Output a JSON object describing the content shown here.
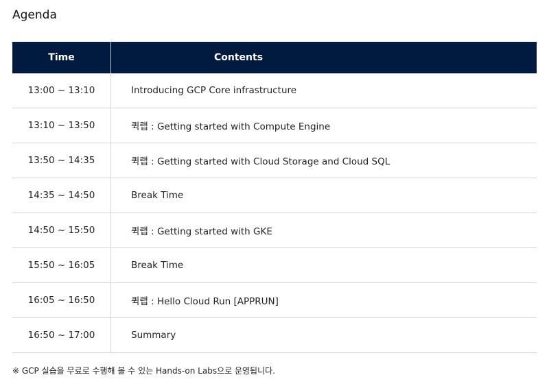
{
  "title": "Agenda",
  "table": {
    "headers": {
      "time": "Time",
      "contents": "Contents"
    },
    "header_bg": "#001a40",
    "rows": [
      {
        "time": "13:00 ~ 13:10",
        "content": "Introducing GCP Core infrastructure"
      },
      {
        "time": "13:10 ~ 13:50",
        "content": "퀵랩 : Getting started with Compute Engine"
      },
      {
        "time": "13:50 ~ 14:35",
        "content": "퀵랩 : Getting started with Cloud Storage and Cloud SQL"
      },
      {
        "time": "14:35 ~ 14:50",
        "content": "Break Time"
      },
      {
        "time": "14:50 ~ 15:50",
        "content": "퀵랩 : Getting started with GKE"
      },
      {
        "time": "15:50 ~ 16:05",
        "content": "Break Time"
      },
      {
        "time": "16:05 ~ 16:50",
        "content": "퀵랩 : Hello Cloud Run [APPRUN]"
      },
      {
        "time": "16:50 ~ 17:00",
        "content": "Summary"
      }
    ]
  },
  "note": "※ GCP 실습을 무료로 수행해 볼 수 있는 Hands-on Labs으로 운영됩니다."
}
